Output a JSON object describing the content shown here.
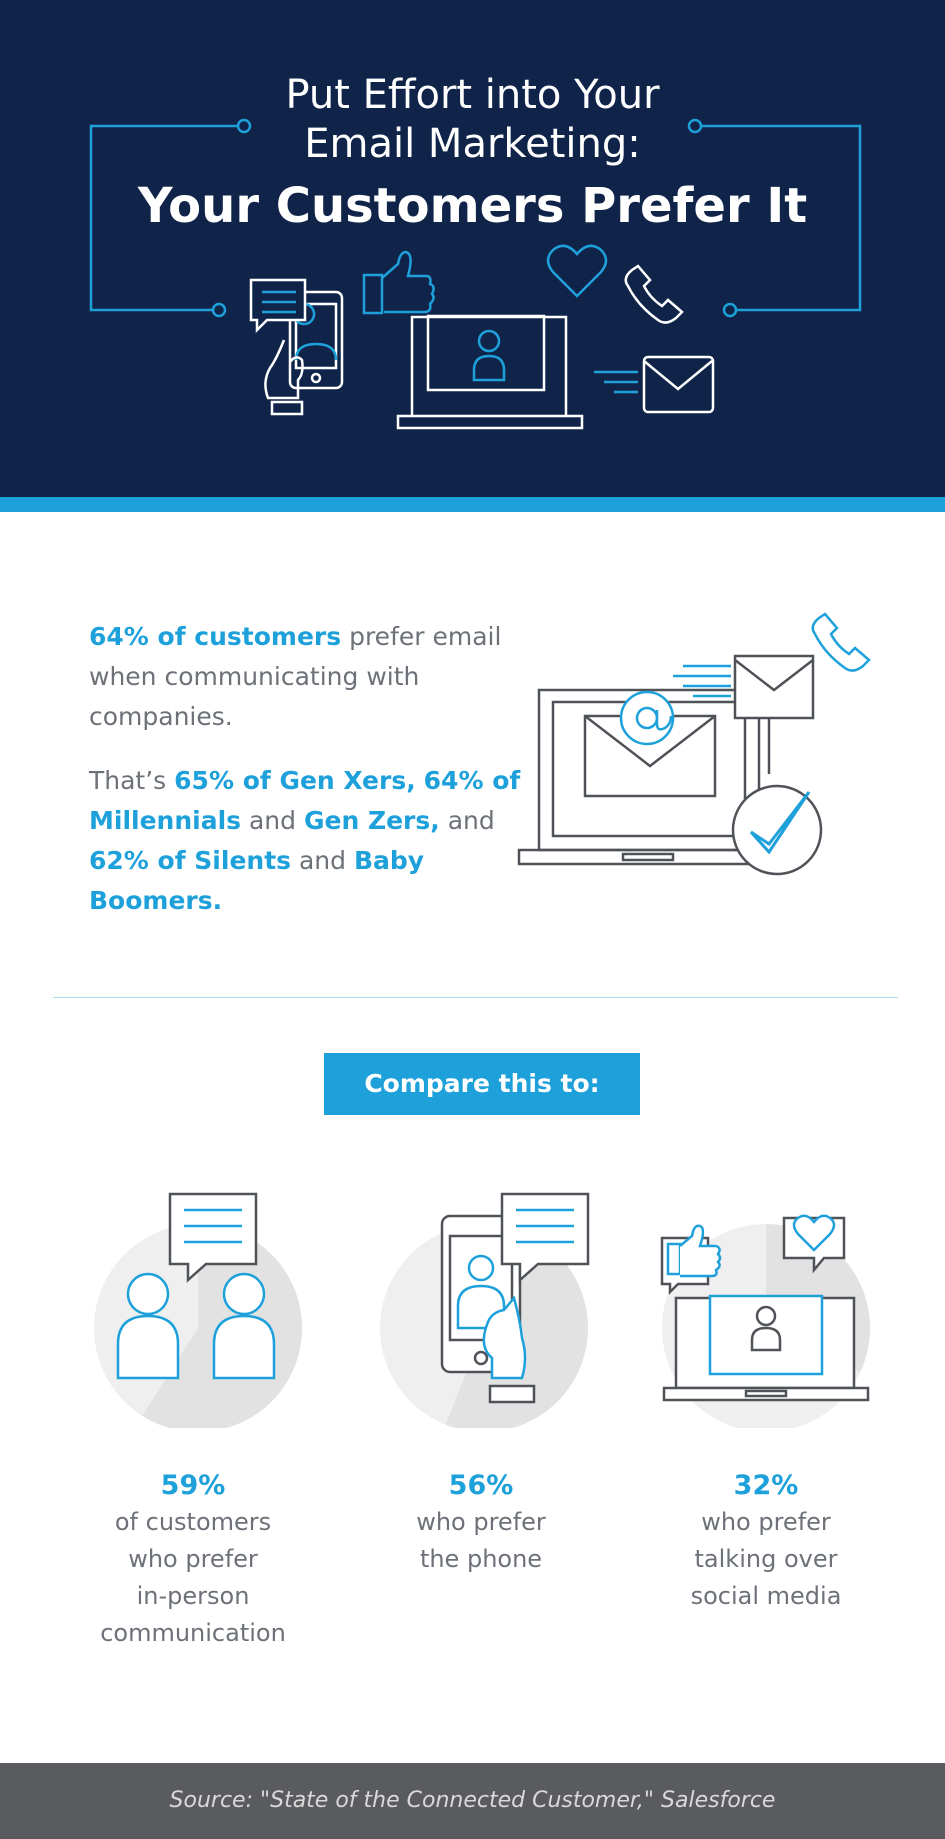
{
  "header": {
    "title_line1": "Put Effort into Your",
    "title_line2": "Email Marketing:",
    "title_line3": "Your Customers Prefer It"
  },
  "intro": {
    "p1": [
      {
        "text": "64% of customers",
        "highlight": true
      },
      {
        "text": " prefer email when communicating with companies.",
        "highlight": false
      }
    ],
    "p2": [
      {
        "text": "That’s ",
        "highlight": false
      },
      {
        "text": "65% of Gen Xers,",
        "highlight": true
      },
      {
        "text": " ",
        "highlight": false
      },
      {
        "text": "64% of Millennials",
        "highlight": true
      },
      {
        "text": " and ",
        "highlight": false
      },
      {
        "text": "Gen Zers,",
        "highlight": true
      },
      {
        "text": " and ",
        "highlight": false
      },
      {
        "text": "62% of Silents",
        "highlight": true
      },
      {
        "text": " and ",
        "highlight": false
      },
      {
        "text": "Baby Boomers.",
        "highlight": true
      }
    ]
  },
  "compare": {
    "label": "Compare this to:"
  },
  "columns": [
    {
      "pct": "59%",
      "lines": [
        "of customers",
        "who prefer",
        "in-person",
        "communication"
      ],
      "fill": 0.59,
      "icon": "two-people-chat-icon"
    },
    {
      "pct": "56%",
      "lines": [
        "who prefer",
        "the phone"
      ],
      "fill": 0.56,
      "icon": "phone-chat-icon"
    },
    {
      "pct": "32%",
      "lines": [
        "who prefer",
        "talking over",
        "social media"
      ],
      "fill": 0.32,
      "icon": "laptop-social-icon"
    }
  ],
  "footer": {
    "source": "Source: \"State of the Connected Customer,\" Salesforce"
  },
  "colors": {
    "navy": "#10244a",
    "accent_blue": "#1ea1db",
    "text_gray": "#6d7178",
    "footer_gray": "#5a5b5e"
  }
}
